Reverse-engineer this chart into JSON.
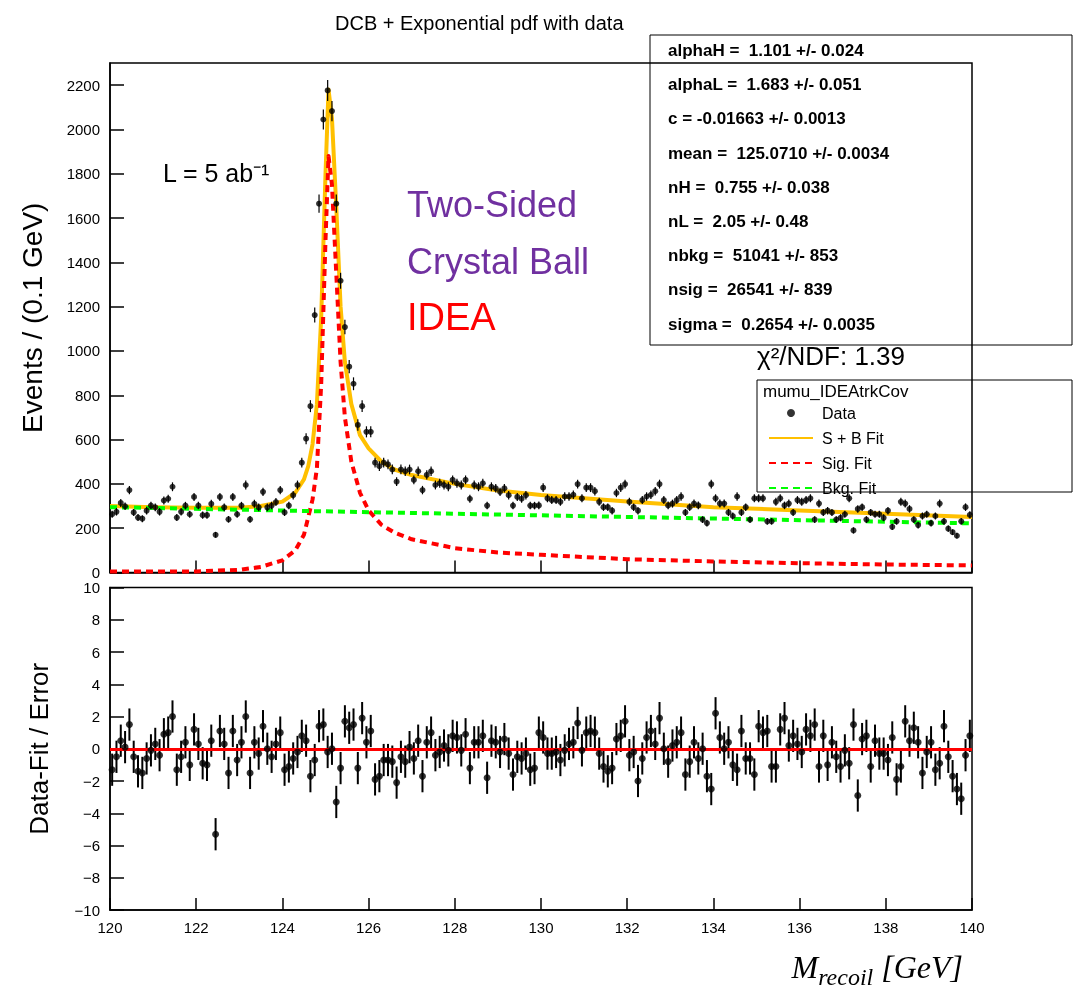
{
  "chart_data": [
    {
      "type": "scatter",
      "title": "DCB + Exponential pdf with data",
      "ylabel": "Events / (0.1 GeV)",
      "legend": "bottom right",
      "legend_title": "mumu_IDEAtrkCov",
      "grid": false,
      "tick_labels": "y",
      "annotations": [
        "L = 5 ab⁻¹",
        "Two-Sided Crystal Ball",
        "IDEA",
        "alphaH =  1.101 +/- 0.024",
        "alphaL =  1.683 +/- 0.051",
        "c = -0.01663 +/- 0.0013",
        "mean =  125.0710 +/- 0.0034",
        "nH =  0.755 +/- 0.038",
        "nL =  2.05 +/- 0.48",
        "nbkg =  51041 +/- 853",
        "nsig =  26541 +/- 839",
        "sigma =  0.2654 +/- 0.0035",
        "χ²/NDF: 1.39"
      ],
      "xlim": [
        120,
        140
      ],
      "xticks": [
        120,
        122,
        124,
        126,
        128,
        130,
        132,
        134,
        136,
        138,
        140
      ],
      "ylim": [
        0,
        2300
      ],
      "yticks": [
        0,
        200,
        400,
        600,
        800,
        1000,
        1200,
        1400,
        1600,
        1800,
        2000,
        2200
      ],
      "x": [
        120.05,
        120.15,
        120.25,
        120.35,
        120.45,
        120.55,
        120.65,
        120.75,
        120.85,
        120.95,
        121.05,
        121.15,
        121.25,
        121.35,
        121.45,
        121.55,
        121.65,
        121.75,
        121.85,
        121.95,
        122.05,
        122.15,
        122.25,
        122.35,
        122.45,
        122.55,
        122.65,
        122.75,
        122.85,
        122.95,
        123.05,
        123.15,
        123.25,
        123.35,
        123.45,
        123.55,
        123.65,
        123.75,
        123.85,
        123.95,
        124.05,
        124.15,
        124.25,
        124.35,
        124.45,
        124.55,
        124.65,
        124.75,
        124.85,
        124.95,
        125.05,
        125.15,
        125.25,
        125.35,
        125.45,
        125.55,
        125.65,
        125.75,
        125.85,
        125.95,
        126.05,
        126.15,
        126.25,
        126.35,
        126.45,
        126.55,
        126.65,
        126.75,
        126.85,
        126.95,
        127.05,
        127.15,
        127.25,
        127.35,
        127.45,
        127.55,
        127.65,
        127.75,
        127.85,
        127.95,
        128.05,
        128.15,
        128.25,
        128.35,
        128.45,
        128.55,
        128.65,
        128.75,
        128.85,
        128.95,
        129.05,
        129.15,
        129.25,
        129.35,
        129.45,
        129.55,
        129.65,
        129.75,
        129.85,
        129.95,
        130.05,
        130.15,
        130.25,
        130.35,
        130.45,
        130.55,
        130.65,
        130.75,
        130.85,
        130.95,
        131.05,
        131.15,
        131.25,
        131.35,
        131.45,
        131.55,
        131.65,
        131.75,
        131.85,
        131.95,
        132.05,
        132.15,
        132.25,
        132.35,
        132.45,
        132.55,
        132.65,
        132.75,
        132.85,
        132.95,
        133.05,
        133.15,
        133.25,
        133.35,
        133.45,
        133.55,
        133.65,
        133.75,
        133.85,
        133.95,
        134.05,
        134.15,
        134.25,
        134.35,
        134.45,
        134.55,
        134.65,
        134.75,
        134.85,
        134.95,
        135.05,
        135.15,
        135.25,
        135.35,
        135.45,
        135.55,
        135.65,
        135.75,
        135.85,
        135.95,
        136.05,
        136.15,
        136.25,
        136.35,
        136.45,
        136.55,
        136.65,
        136.75,
        136.85,
        136.95,
        137.05,
        137.15,
        137.25,
        137.35,
        137.45,
        137.55,
        137.65,
        137.75,
        137.85,
        137.95,
        138.05,
        138.15,
        138.25,
        138.35,
        138.45,
        138.55,
        138.65,
        138.75,
        138.85,
        138.95,
        139.05,
        139.15,
        139.25,
        139.35,
        139.45,
        139.55,
        139.65,
        139.75,
        139.85,
        139.95
      ],
      "series": [
        {
          "name": "Data",
          "type": "scatter",
          "marker": "circle",
          "color": "#000000",
          "values": [
            263,
            274,
            314,
            299,
            372,
            271,
            248,
            243,
            279,
            302,
            294,
            274,
            325,
            333,
            387,
            248,
            274,
            302,
            263,
            341,
            302,
            259,
            259,
            310,
            170,
            341,
            294,
            240,
            341,
            263,
            302,
            395,
            240,
            310,
            294,
            364,
            294,
            302,
            318,
            372,
            271,
            302,
            349,
            395,
            496,
            604,
            751,
            1162,
            1665,
            2045,
            2176,
            2083,
            1665,
            1317,
            1108,
            929,
            852,
            666,
            751,
            635,
            635,
            496,
            480,
            496,
            488,
            465,
            410,
            465,
            457,
            465,
            418,
            457,
            372,
            441,
            457,
            395,
            403,
            395,
            387,
            418,
            403,
            395,
            418,
            333,
            395,
            387,
            403,
            302,
            387,
            380,
            364,
            380,
            349,
            302,
            341,
            333,
            349,
            302,
            302,
            303,
            383,
            335,
            327,
            327,
            319,
            343,
            343,
            351,
            399,
            335,
            383,
            383,
            367,
            319,
            295,
            295,
            279,
            359,
            383,
            399,
            319,
            295,
            279,
            327,
            343,
            351,
            367,
            399,
            327,
            303,
            311,
            327,
            343,
            271,
            295,
            311,
            303,
            239,
            223,
            399,
            335,
            311,
            311,
            271,
            255,
            343,
            271,
            295,
            239,
            335,
            335,
            335,
            231,
            231,
            319,
            335,
            303,
            311,
            271,
            327,
            319,
            327,
            335,
            239,
            311,
            271,
            279,
            271,
            239,
            247,
            263,
            335,
            190,
            287,
            295,
            239,
            271,
            263,
            263,
            247,
            279,
            206,
            231,
            319,
            311,
            287,
            239,
            214,
            255,
            263,
            223,
            255,
            311,
            231,
            198,
            182,
            166,
            231,
            295,
            260
          ],
          "errors": [
            16,
            17,
            18,
            17,
            19,
            16,
            16,
            16,
            17,
            17,
            17,
            17,
            18,
            18,
            20,
            16,
            17,
            17,
            16,
            18,
            17,
            16,
            16,
            18,
            13,
            18,
            17,
            15,
            18,
            16,
            17,
            20,
            15,
            18,
            17,
            19,
            17,
            17,
            18,
            19,
            16,
            17,
            19,
            20,
            22,
            25,
            27,
            34,
            41,
            45,
            47,
            46,
            41,
            36,
            33,
            30,
            29,
            26,
            27,
            25,
            25,
            22,
            22,
            22,
            22,
            22,
            20,
            22,
            21,
            22,
            20,
            21,
            19,
            21,
            21,
            20,
            20,
            20,
            20,
            20,
            20,
            20,
            20,
            18,
            20,
            20,
            20,
            17,
            20,
            19,
            19,
            19,
            19,
            17,
            18,
            18,
            19,
            17,
            17,
            17,
            20,
            18,
            18,
            18,
            18,
            19,
            19,
            19,
            20,
            18,
            20,
            20,
            19,
            18,
            17,
            17,
            17,
            19,
            20,
            20,
            18,
            17,
            17,
            18,
            19,
            19,
            19,
            20,
            18,
            17,
            18,
            18,
            19,
            16,
            17,
            18,
            17,
            15,
            15,
            20,
            18,
            18,
            18,
            16,
            16,
            19,
            16,
            17,
            15,
            18,
            18,
            18,
            15,
            15,
            18,
            18,
            17,
            18,
            16,
            18,
            18,
            18,
            18,
            15,
            18,
            16,
            17,
            16,
            15,
            16,
            16,
            18,
            14,
            17,
            17,
            15,
            16,
            16,
            16,
            16,
            17,
            14,
            15,
            18,
            18,
            17,
            15,
            15,
            16,
            16,
            15,
            16,
            18,
            15,
            14,
            13,
            13,
            15,
            17,
            16
          ]
        },
        {
          "name": "S + B Fit",
          "type": "line",
          "marker": "none",
          "color": "#ffc000",
          "x": [
            120,
            121,
            122,
            123,
            123.5,
            124,
            124.3,
            124.5,
            124.6,
            124.7,
            124.8,
            124.9,
            125,
            125.07,
            125.15,
            125.25,
            125.35,
            125.45,
            125.6,
            125.8,
            126,
            126.3,
            126.6,
            127,
            128,
            129,
            130,
            132,
            134,
            136,
            138,
            140
          ],
          "values": [
            300,
            295,
            292,
            292,
            300,
            320,
            360,
            420,
            480,
            580,
            760,
            1150,
            1800,
            2180,
            2050,
            1650,
            1200,
            950,
            760,
            620,
            560,
            500,
            465,
            440,
            400,
            370,
            350,
            320,
            295,
            280,
            265,
            250
          ]
        },
        {
          "name": "Sig. Fit",
          "type": "line",
          "marker": "none",
          "color": "#ff0000",
          "line_style": "dashed",
          "x": [
            120,
            122,
            123,
            123.5,
            124,
            124.3,
            124.5,
            124.7,
            124.8,
            124.9,
            125,
            125.07,
            125.15,
            125.25,
            125.35,
            125.45,
            125.6,
            125.8,
            126,
            126.3,
            126.6,
            127,
            128,
            129,
            130,
            132,
            134,
            136,
            138,
            140
          ],
          "values": [
            5,
            5,
            12,
            25,
            55,
            100,
            170,
            330,
            470,
            850,
            1500,
            1880,
            1750,
            1350,
            950,
            700,
            500,
            360,
            280,
            215,
            180,
            150,
            110,
            90,
            80,
            60,
            50,
            42,
            36,
            32
          ]
        },
        {
          "name": "Bkg. Fit",
          "type": "line",
          "marker": "none",
          "color": "#00ff00",
          "line_style": "dashed",
          "x": [
            120,
            125,
            130,
            135,
            140
          ],
          "values": [
            295,
            276,
            258,
            240,
            222
          ]
        }
      ]
    },
    {
      "type": "scatter",
      "xlabel": "M$_{recoil}$ [GeV]",
      "ylabel": "Data-Fit / Error",
      "marker": "circle",
      "grid": false,
      "xlim": [
        120,
        140
      ],
      "xticks": [
        120,
        122,
        124,
        126,
        128,
        130,
        132,
        134,
        136,
        138,
        140
      ],
      "ylim": [
        -10,
        10
      ],
      "yticks": [
        {
          "value": -10,
          "label": "−10"
        },
        {
          "value": -8,
          "label": "−8"
        },
        {
          "value": -6,
          "label": "−6"
        },
        {
          "value": -4,
          "label": "−4"
        },
        {
          "value": -2,
          "label": "−2"
        },
        0,
        2,
        4,
        6,
        8,
        10
      ],
      "ref_lines": [
        {
          "axis": "y",
          "value": 0,
          "color": "#ff0000"
        }
      ],
      "x": [
        120.05,
        120.15,
        120.25,
        120.35,
        120.45,
        120.55,
        120.65,
        120.75,
        120.85,
        120.95,
        121.05,
        121.15,
        121.25,
        121.35,
        121.45,
        121.55,
        121.65,
        121.75,
        121.85,
        121.95,
        122.05,
        122.15,
        122.25,
        122.35,
        122.45,
        122.55,
        122.65,
        122.75,
        122.85,
        122.95,
        123.05,
        123.15,
        123.25,
        123.35,
        123.45,
        123.55,
        123.65,
        123.75,
        123.85,
        123.95,
        124.05,
        124.15,
        124.25,
        124.35,
        124.45,
        124.55,
        124.65,
        124.75,
        124.85,
        124.95,
        125.05,
        125.15,
        125.25,
        125.35,
        125.45,
        125.55,
        125.65,
        125.75,
        125.85,
        125.95,
        126.05,
        126.15,
        126.25,
        126.35,
        126.45,
        126.55,
        126.65,
        126.75,
        126.85,
        126.95,
        127.05,
        127.15,
        127.25,
        127.35,
        127.45,
        127.55,
        127.65,
        127.75,
        127.85,
        127.95,
        128.05,
        128.15,
        128.25,
        128.35,
        128.45,
        128.55,
        128.65,
        128.75,
        128.85,
        128.95,
        129.05,
        129.15,
        129.25,
        129.35,
        129.45,
        129.55,
        129.65,
        129.75,
        129.85,
        129.95,
        130.05,
        130.15,
        130.25,
        130.35,
        130.45,
        130.55,
        130.65,
        130.75,
        130.85,
        130.95,
        131.05,
        131.15,
        131.25,
        131.35,
        131.45,
        131.55,
        131.65,
        131.75,
        131.85,
        131.95,
        132.05,
        132.15,
        132.25,
        132.35,
        132.45,
        132.55,
        132.65,
        132.75,
        132.85,
        132.95,
        133.05,
        133.15,
        133.25,
        133.35,
        133.45,
        133.55,
        133.65,
        133.75,
        133.85,
        133.95,
        134.05,
        134.15,
        134.25,
        134.35,
        134.45,
        134.55,
        134.65,
        134.75,
        134.85,
        134.95,
        135.05,
        135.15,
        135.25,
        135.35,
        135.45,
        135.55,
        135.65,
        135.75,
        135.85,
        135.95,
        136.05,
        136.15,
        136.25,
        136.35,
        136.45,
        136.55,
        136.65,
        136.75,
        136.85,
        136.95,
        137.05,
        137.15,
        137.25,
        137.35,
        137.45,
        137.55,
        137.65,
        137.75,
        137.85,
        137.95,
        138.05,
        138.15,
        138.25,
        138.35,
        138.45,
        138.55,
        138.65,
        138.75,
        138.85,
        138.95,
        139.05,
        139.15,
        139.25,
        139.35,
        139.45,
        139.55,
        139.65,
        139.75,
        139.85,
        139.95
      ],
      "series": [
        {
          "color": "#000000",
          "values": [
            -1.3,
            -0.5,
            0.5,
            0.1,
            1.5,
            -0.5,
            -1.4,
            -1.5,
            -0.6,
            -0.1,
            0.3,
            -0.4,
            0.9,
            1.0,
            2.0,
            -1.3,
            -0.5,
            0.4,
            -1.0,
            1.2,
            0.3,
            -0.9,
            -1.0,
            0.5,
            -5.3,
            1.1,
            0.3,
            -1.5,
            1.1,
            -0.7,
            0.4,
            2.0,
            -1.5,
            0.4,
            -0.3,
            1.4,
            0.0,
            -0.5,
            0.3,
            1.0,
            -1.3,
            -1.1,
            -0.6,
            -0.2,
            0.8,
            0.5,
            -1.7,
            -0.7,
            1.4,
            1.5,
            -0.2,
            0.0,
            -3.3,
            -1.2,
            1.7,
            1.3,
            1.5,
            -1.2,
            1.9,
            0.4,
            1.1,
            -1.9,
            -1.7,
            -0.7,
            -0.7,
            -0.8,
            -2.1,
            -0.5,
            -0.8,
            0.1,
            -0.6,
            0.5,
            -1.7,
            0.4,
            1.0,
            -0.4,
            -0.2,
            0.2,
            -0.1,
            0.8,
            0.7,
            -0.1,
            0.9,
            -1.2,
            0.4,
            0.4,
            0.8,
            -1.8,
            0.5,
            0.4,
            -0.2,
            0.6,
            -0.3,
            -1.6,
            -0.5,
            -0.6,
            -0.3,
            -1.3,
            -1.2,
            1.0,
            0.7,
            -0.3,
            -0.3,
            -0.2,
            -0.7,
            -0.1,
            0.3,
            0.4,
            1.6,
            -0.1,
            1.0,
            1.1,
            1.0,
            -0.3,
            -1.1,
            -1.4,
            -1.2,
            0.6,
            0.8,
            1.7,
            -0.4,
            -0.2,
            -2.0,
            -0.6,
            0.7,
            1.1,
            0.3,
            1.9,
            0.0,
            -0.8,
            0.2,
            0.4,
            1.0,
            -1.6,
            -0.8,
            0.4,
            -0.6,
            0.0,
            -1.7,
            -2.5,
            2.2,
            0.7,
            0.0,
            0.4,
            -1.0,
            -1.3,
            1.1,
            -0.6,
            -0.6,
            -1.6,
            1.4,
            1.0,
            1.1,
            -1.1,
            -1.1,
            1.2,
            1.9,
            0.2,
            0.8,
            0.3,
            -0.2,
            1.2,
            0.8,
            1.5,
            -1.1,
            0.8,
            -1.0,
            0.4,
            -0.5,
            -1.1,
            -0.1,
            -0.9,
            1.5,
            -2.9,
            0.6,
            0.8,
            -1.1,
            0.5,
            -0.3,
            -0.3,
            -0.7,
            0.7,
            -1.9,
            -1.1,
            1.7,
            0.5,
            1.3,
            0.4,
            -1.5,
            -0.2,
            0.4,
            -1.3,
            -0.9,
            1.4,
            -0.5,
            -1.7,
            -2.5,
            -3.1,
            -0.4,
            0.8
          ],
          "errors": [
            1,
            1,
            1,
            1,
            1,
            1,
            1,
            1,
            1,
            1,
            1,
            1,
            1,
            1,
            1,
            1,
            1,
            1,
            1,
            1,
            1,
            1,
            1,
            1,
            1,
            1,
            1,
            1,
            1,
            1,
            1,
            1,
            1,
            1,
            1,
            1,
            1,
            1,
            1,
            1,
            1,
            1,
            1,
            1,
            1,
            1,
            1,
            1,
            1,
            1,
            1,
            1,
            1,
            1,
            1,
            1,
            1,
            1,
            1,
            1,
            1,
            1,
            1,
            1,
            1,
            1,
            1,
            1,
            1,
            1,
            1,
            1,
            1,
            1,
            1,
            1,
            1,
            1,
            1,
            1,
            1,
            1,
            1,
            1,
            1,
            1,
            1,
            1,
            1,
            1,
            1,
            1,
            1,
            1,
            1,
            1,
            1,
            1,
            1,
            1,
            1,
            1,
            1,
            1,
            1,
            1,
            1,
            1,
            1,
            1,
            1,
            1,
            1,
            1,
            1,
            1,
            1,
            1,
            1,
            1,
            1,
            1,
            1,
            1,
            1,
            1,
            1,
            1,
            1,
            1,
            1,
            1,
            1,
            1,
            1,
            1,
            1,
            1,
            1,
            1,
            1,
            1,
            1,
            1,
            1,
            1,
            1,
            1,
            1,
            1,
            1,
            1,
            1,
            1,
            1,
            1,
            1,
            1,
            1,
            1,
            1,
            1,
            1,
            1,
            1,
            1,
            1,
            1,
            1,
            1,
            1,
            1,
            1,
            1,
            1,
            1,
            1,
            1,
            1,
            1,
            1,
            1,
            1,
            1,
            1,
            1,
            1,
            1,
            1,
            1,
            1,
            1,
            1,
            1,
            1,
            1,
            1,
            1,
            1,
            1
          ]
        }
      ]
    }
  ]
}
